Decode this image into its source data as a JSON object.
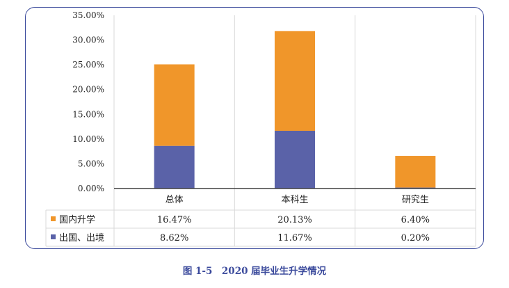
{
  "chart_data": {
    "type": "bar",
    "stacked": true,
    "categories": [
      "总体",
      "本科生",
      "研究生"
    ],
    "series": [
      {
        "name": "出国、出境",
        "values": [
          8.62,
          11.67,
          0.2
        ],
        "labels": [
          "8.62%",
          "11.67%",
          "0.20%"
        ],
        "color": "#5a62a8"
      },
      {
        "name": "国内升学",
        "values": [
          16.47,
          20.13,
          6.4
        ],
        "labels": [
          "16.47%",
          "20.13%",
          "6.40%"
        ],
        "color": "#f0962a"
      }
    ],
    "ylim": [
      0,
      35
    ],
    "yticks": [
      "0.00%",
      "5.00%",
      "10.00%",
      "15.00%",
      "20.00%",
      "25.00%",
      "30.00%",
      "35.00%"
    ],
    "grid": "vertical-category-dividers",
    "legend": "data-table"
  },
  "caption": "图 1-5　2020 届毕业生升学情况"
}
